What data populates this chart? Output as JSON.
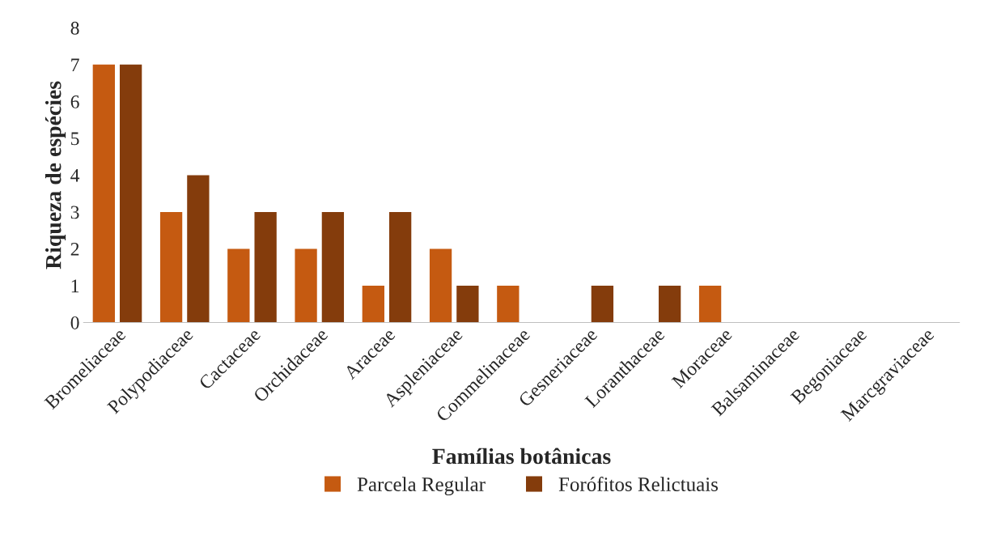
{
  "chart_data": {
    "type": "bar",
    "xlabel": "Famílias botânicas",
    "ylabel": "Riqueza de espécies",
    "categories": [
      "Bromeliaceae",
      "Polypodiaceae",
      "Cactaceae",
      "Orchidaceae",
      "Araceae",
      "Aspleniaceae",
      "Commelinaceae",
      "Gesneriaceae",
      "Loranthaceae",
      "Moraceae",
      "Balsaminaceae",
      "Begoniaceae",
      "Marcgraviaceae"
    ],
    "series": [
      {
        "name": "Parcela Regular",
        "color": "#c55a11",
        "values": [
          7,
          3,
          2,
          2,
          1,
          2,
          1,
          null,
          null,
          1,
          null,
          null,
          null
        ]
      },
      {
        "name": "Forófitos Relictuais",
        "color": "#843c0c",
        "values": [
          7,
          4,
          3,
          3,
          3,
          1,
          null,
          1,
          1,
          null,
          null,
          null,
          null
        ]
      }
    ],
    "ylim": [
      0,
      8
    ],
    "yticks": [
      0,
      1,
      2,
      3,
      4,
      5,
      6,
      7,
      8
    ],
    "grid": false,
    "legend": "bottom"
  }
}
